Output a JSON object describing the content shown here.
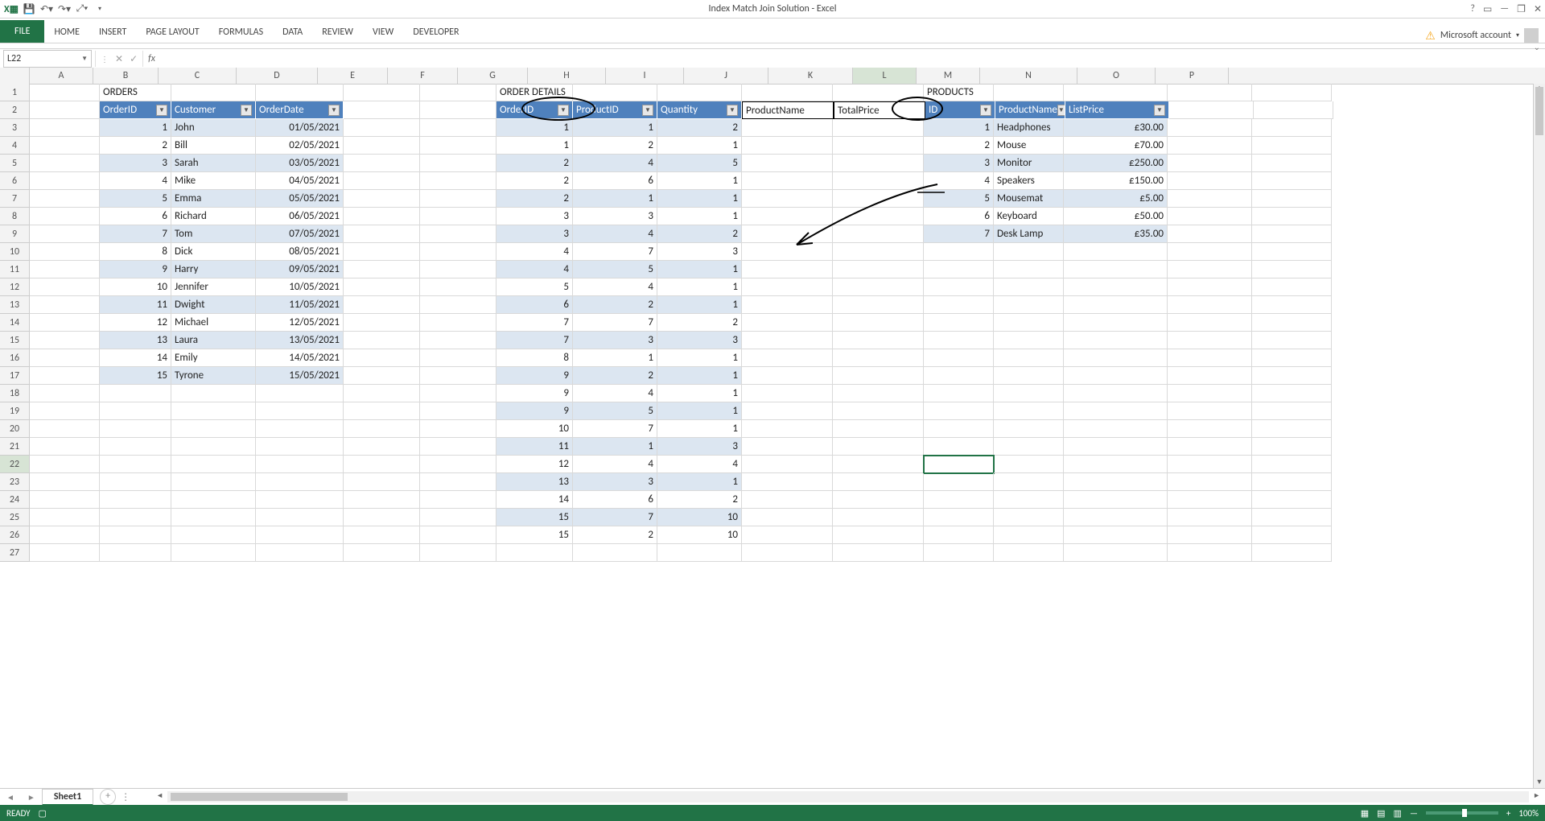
{
  "window": {
    "title": "Index Match Join Solution - Excel",
    "account_label": "Microsoft account",
    "status": "READY",
    "zoom": "100%"
  },
  "ribbon": {
    "tabs": [
      "FILE",
      "HOME",
      "INSERT",
      "PAGE LAYOUT",
      "FORMULAS",
      "DATA",
      "REVIEW",
      "VIEW",
      "DEVELOPER"
    ]
  },
  "formula_bar": {
    "name_box": "L22",
    "formula": ""
  },
  "columns": {
    "labels": [
      "A",
      "B",
      "C",
      "D",
      "E",
      "F",
      "G",
      "H",
      "I",
      "J",
      "K",
      "L",
      "M",
      "N",
      "O",
      "P"
    ],
    "widths": [
      78,
      80,
      96,
      100,
      86,
      86,
      86,
      96,
      96,
      104,
      104,
      78,
      78,
      120,
      96,
      90
    ]
  },
  "row_count": 27,
  "selected_cell": {
    "row": 22,
    "col": "L"
  },
  "labels": {
    "orders_title": "ORDERS",
    "details_title": "ORDER DETAILS",
    "products_title": "PRODUCTS",
    "extra_h1": "ProductName",
    "extra_h2": "TotalPrice"
  },
  "orders": {
    "columns": [
      "OrderID",
      "Customer",
      "OrderDate"
    ],
    "rows": [
      [
        1,
        "John",
        "01/05/2021"
      ],
      [
        2,
        "Bill",
        "02/05/2021"
      ],
      [
        3,
        "Sarah",
        "03/05/2021"
      ],
      [
        4,
        "Mike",
        "04/05/2021"
      ],
      [
        5,
        "Emma",
        "05/05/2021"
      ],
      [
        6,
        "Richard",
        "06/05/2021"
      ],
      [
        7,
        "Tom",
        "07/05/2021"
      ],
      [
        8,
        "Dick",
        "08/05/2021"
      ],
      [
        9,
        "Harry",
        "09/05/2021"
      ],
      [
        10,
        "Jennifer",
        "10/05/2021"
      ],
      [
        11,
        "Dwight",
        "11/05/2021"
      ],
      [
        12,
        "Michael",
        "12/05/2021"
      ],
      [
        13,
        "Laura",
        "13/05/2021"
      ],
      [
        14,
        "Emily",
        "14/05/2021"
      ],
      [
        15,
        "Tyrone",
        "15/05/2021"
      ]
    ]
  },
  "details": {
    "columns": [
      "OrderID",
      "ProductID",
      "Quantity"
    ],
    "rows": [
      [
        1,
        1,
        2
      ],
      [
        1,
        2,
        1
      ],
      [
        2,
        4,
        5
      ],
      [
        2,
        6,
        1
      ],
      [
        2,
        1,
        1
      ],
      [
        3,
        3,
        1
      ],
      [
        3,
        4,
        2
      ],
      [
        4,
        7,
        3
      ],
      [
        4,
        5,
        1
      ],
      [
        5,
        4,
        1
      ],
      [
        6,
        2,
        1
      ],
      [
        7,
        7,
        2
      ],
      [
        7,
        3,
        3
      ],
      [
        8,
        1,
        1
      ],
      [
        9,
        2,
        1
      ],
      [
        9,
        4,
        1
      ],
      [
        9,
        5,
        1
      ],
      [
        10,
        7,
        1
      ],
      [
        11,
        1,
        3
      ],
      [
        12,
        4,
        4
      ],
      [
        13,
        3,
        1
      ],
      [
        14,
        6,
        2
      ],
      [
        15,
        7,
        10
      ],
      [
        15,
        2,
        10
      ]
    ]
  },
  "products": {
    "columns": [
      "ID",
      "ProductName",
      "ListPrice"
    ],
    "rows": [
      [
        1,
        "Headphones",
        "£30.00"
      ],
      [
        2,
        "Mouse",
        "£70.00"
      ],
      [
        3,
        "Monitor",
        "£250.00"
      ],
      [
        4,
        "Speakers",
        "£150.00"
      ],
      [
        5,
        "Mousemat",
        "£5.00"
      ],
      [
        6,
        "Keyboard",
        "£50.00"
      ],
      [
        7,
        "Desk Lamp",
        "£35.00"
      ]
    ]
  },
  "sheets": {
    "active": "Sheet1"
  },
  "colors": {
    "ribbon_green": "#217346",
    "table_header": "#4f81bd",
    "table_band": "#dce6f1"
  }
}
